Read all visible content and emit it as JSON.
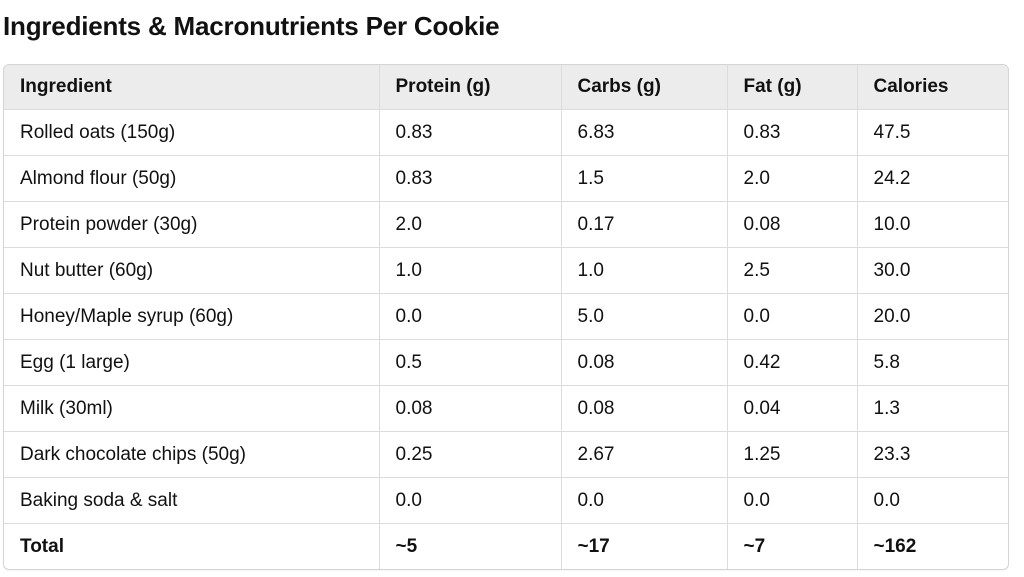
{
  "title": "Ingredients & Macronutrients Per Cookie",
  "table": {
    "headers": [
      "Ingredient",
      "Protein (g)",
      "Carbs (g)",
      "Fat (g)",
      "Calories"
    ],
    "rows": [
      [
        "Rolled oats (150g)",
        "0.83",
        "6.83",
        "0.83",
        "47.5"
      ],
      [
        "Almond flour (50g)",
        "0.83",
        "1.5",
        "2.0",
        "24.2"
      ],
      [
        "Protein powder (30g)",
        "2.0",
        "0.17",
        "0.08",
        "10.0"
      ],
      [
        "Nut butter (60g)",
        "1.0",
        "1.0",
        "2.5",
        "30.0"
      ],
      [
        "Honey/Maple syrup (60g)",
        "0.0",
        "5.0",
        "0.0",
        "20.0"
      ],
      [
        "Egg (1 large)",
        "0.5",
        "0.08",
        "0.42",
        "5.8"
      ],
      [
        "Milk (30ml)",
        "0.08",
        "0.08",
        "0.04",
        "1.3"
      ],
      [
        "Dark chocolate chips (50g)",
        "0.25",
        "2.67",
        "1.25",
        "23.3"
      ],
      [
        "Baking soda & salt",
        "0.0",
        "0.0",
        "0.0",
        "0.0"
      ]
    ],
    "total": [
      "Total",
      "~5",
      "~17",
      "~7",
      "~162"
    ]
  },
  "colors": {
    "header_background": "#ececec",
    "border": "#d4d4d4",
    "text": "#111111"
  }
}
